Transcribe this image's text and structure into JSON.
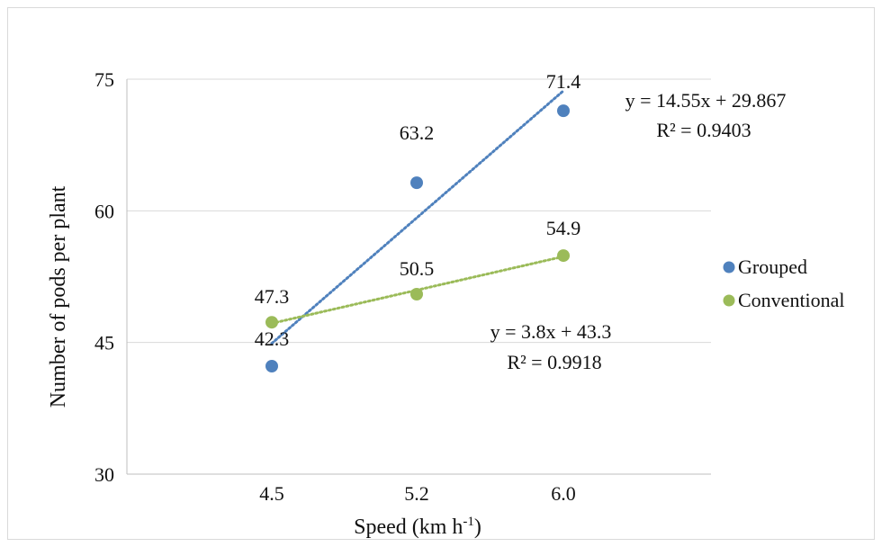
{
  "chart_data": {
    "type": "scatter",
    "categories": [
      "4.5",
      "5.2",
      "6.0"
    ],
    "x": [
      4.5,
      5.2,
      6.0
    ],
    "ylim": [
      30,
      75
    ],
    "yticks": [
      30,
      45,
      60,
      75
    ],
    "ylabel": "Number of pods per plant",
    "xlabel_main": "Speed (km h",
    "xlabel_sup": "-1",
    "xlabel_close": ")",
    "grid": "horizontal",
    "legend_position": "right",
    "series": [
      {
        "name": "Grouped",
        "color": "#4f81bd",
        "values": [
          42.3,
          63.2,
          71.4
        ],
        "labels": [
          "42.3",
          "63.2",
          "71.4"
        ],
        "trendline": {
          "type": "linear",
          "equation": "y = 14.55x + 29.867",
          "r2": "R² = 0.9403"
        }
      },
      {
        "name": "Conventional",
        "color": "#9bbb59",
        "values": [
          47.3,
          50.5,
          54.9
        ],
        "labels": [
          "47.3",
          "50.5",
          "54.9"
        ],
        "trendline": {
          "type": "linear",
          "equation": "y = 3.8x + 43.3",
          "r2": "R² = 0.9918"
        }
      }
    ]
  }
}
